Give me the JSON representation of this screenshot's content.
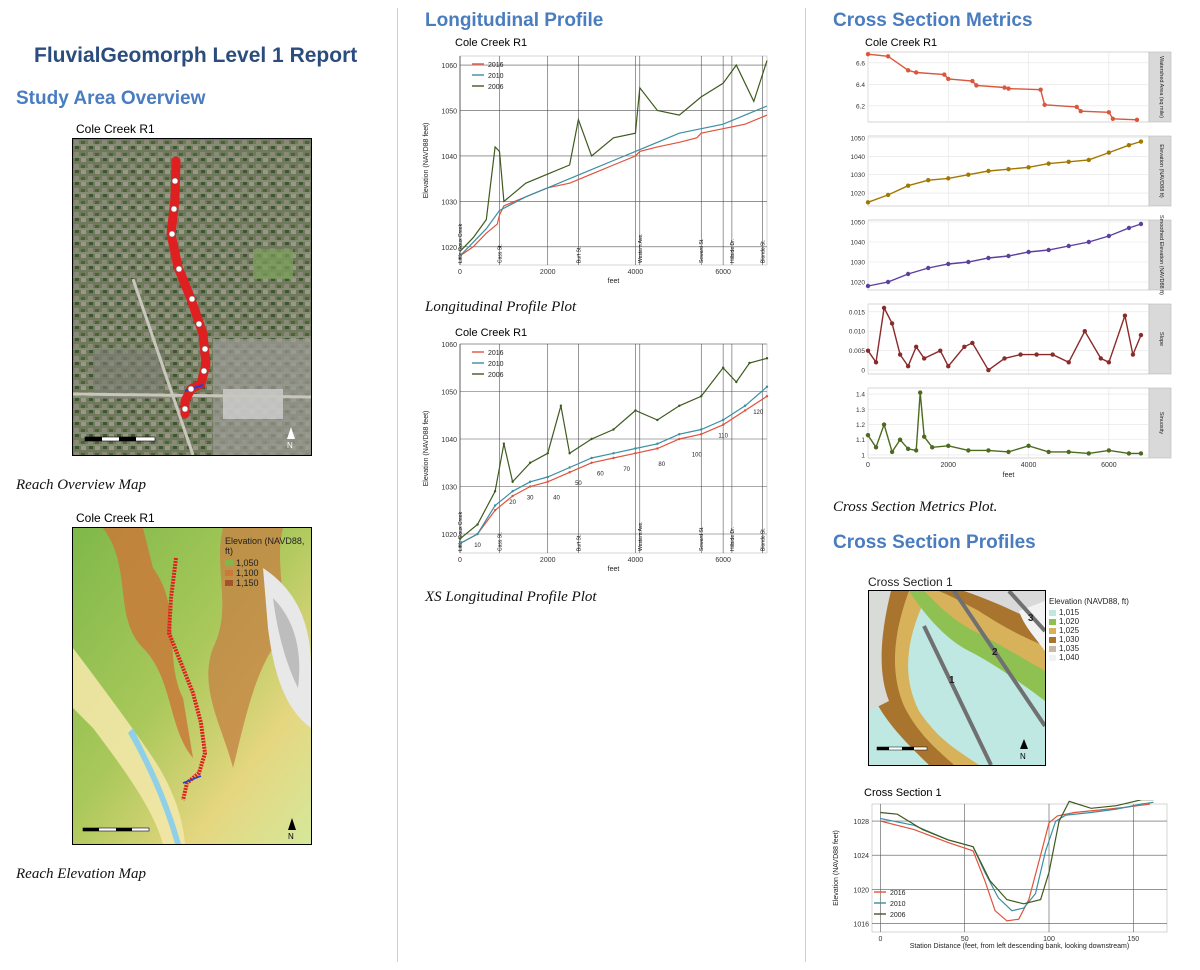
{
  "report": {
    "title": "FluvialGeomorph Level 1 Report"
  },
  "col1": {
    "heading": "Study Area Overview",
    "map1": {
      "title": "Cole Creek R1",
      "caption": "Reach Overview Map"
    },
    "map2": {
      "title": "Cole Creek R1",
      "caption": "Reach Elevation Map",
      "legend_title": "Elevation (NAVD88, ft)",
      "legend_items": [
        "1,050",
        "1,100",
        "1,150"
      ]
    }
  },
  "col2": {
    "heading": "Longitudinal Profile",
    "plot1": {
      "title": "Cole Creek R1",
      "caption": "Longitudinal Profile Plot"
    },
    "plot2": {
      "title": "Cole Creek R1",
      "caption": "XS Longitudinal Profile Plot"
    }
  },
  "col3": {
    "heading": "Cross Section Metrics",
    "metrics": {
      "title": "Cole Creek R1",
      "caption": "Cross Section Metrics Plot.",
      "panels": [
        "Watershed Area (sq mile)",
        "Elevation (NAVD88 ft)",
        "Smoothed Elevation (NAVD88 ft)",
        "Slope",
        "Sinuosity"
      ]
    },
    "heading2": "Cross Section Profiles",
    "xsmap": {
      "title": "Cross Section 1",
      "legend_title": "Elevation (NAVD88, ft)",
      "legend_items": [
        "1,015",
        "1,020",
        "1,025",
        "1,030",
        "1,035",
        "1,040"
      ],
      "xs_labels": [
        "1",
        "2",
        "3"
      ]
    },
    "xsplot": {
      "title": "Cross Section  1"
    }
  },
  "chart_data": [
    {
      "type": "line",
      "id": "longitudinal_profile",
      "title": "Cole Creek R1",
      "xlabel": "feet",
      "ylabel": "Elevation (NAVD88 feet)",
      "xlim": [
        0,
        7000
      ],
      "ylim": [
        1016,
        1062
      ],
      "xticks": [
        0,
        2000,
        4000,
        6000
      ],
      "yticks": [
        1020,
        1030,
        1040,
        1050,
        1060
      ],
      "road_labels": [
        {
          "x": 0,
          "label": "Little Sioux Creek"
        },
        {
          "x": 900,
          "label": "Cass St."
        },
        {
          "x": 2700,
          "label": "Burt St."
        },
        {
          "x": 4100,
          "label": "Western Ave."
        },
        {
          "x": 5500,
          "label": "Seward St."
        },
        {
          "x": 6200,
          "label": "Hillside Dr."
        },
        {
          "x": 6900,
          "label": "Blondo St."
        }
      ],
      "series": [
        {
          "name": "2016",
          "color": "#e0533e",
          "x": [
            0,
            300,
            600,
            850,
            900,
            1000,
            1500,
            2000,
            2500,
            3000,
            3500,
            4000,
            4100,
            4500,
            5000,
            5400,
            5500,
            6000,
            6500,
            7000
          ],
          "y": [
            1018,
            1020,
            1023,
            1025,
            1027,
            1029,
            1031,
            1033,
            1034,
            1036,
            1038,
            1040,
            1041,
            1042,
            1043,
            1044,
            1045,
            1046,
            1047,
            1049
          ]
        },
        {
          "name": "2010",
          "color": "#3a8fa3",
          "x": [
            0,
            300,
            600,
            900,
            1500,
            2000,
            2500,
            3000,
            3500,
            4000,
            4500,
            5000,
            5500,
            6000,
            6500,
            7000
          ],
          "y": [
            1018,
            1021,
            1024,
            1028,
            1031,
            1033,
            1035,
            1037,
            1039,
            1041,
            1043,
            1045,
            1046,
            1047,
            1049,
            1051
          ]
        },
        {
          "name": "2006",
          "color": "#3f5a1e",
          "x": [
            0,
            300,
            600,
            800,
            900,
            1000,
            1500,
            2000,
            2500,
            2700,
            3000,
            3500,
            4000,
            4100,
            4500,
            5000,
            5500,
            6000,
            6300,
            6700,
            7000
          ],
          "y": [
            1019,
            1022,
            1026,
            1042,
            1041,
            1030,
            1034,
            1036,
            1038,
            1048,
            1040,
            1044,
            1045,
            1055,
            1050,
            1049,
            1053,
            1056,
            1060,
            1052,
            1061
          ]
        }
      ]
    },
    {
      "type": "line",
      "id": "xs_longitudinal_profile",
      "title": "Cole Creek R1",
      "xlabel": "feet",
      "ylabel": "Elevation (NAVD88 feet)",
      "xlim": [
        0,
        7000
      ],
      "ylim": [
        1016,
        1060
      ],
      "xticks": [
        0,
        2000,
        4000,
        6000
      ],
      "yticks": [
        1020,
        1030,
        1040,
        1050,
        1060
      ],
      "road_labels": [
        {
          "x": 0,
          "label": "Little Sioux Creek"
        },
        {
          "x": 900,
          "label": "Cass St."
        },
        {
          "x": 2700,
          "label": "Burt St."
        },
        {
          "x": 4100,
          "label": "Western Ave."
        },
        {
          "x": 5500,
          "label": "Seward St."
        },
        {
          "x": 6200,
          "label": "Hillside Dr."
        },
        {
          "x": 6900,
          "label": "Blondo St."
        }
      ],
      "xs_labels": [
        {
          "x": 400,
          "y": 1019,
          "label": "10"
        },
        {
          "x": 1200,
          "y": 1028,
          "label": "20"
        },
        {
          "x": 1600,
          "y": 1029,
          "label": "30"
        },
        {
          "x": 2200,
          "y": 1029,
          "label": "40"
        },
        {
          "x": 2700,
          "y": 1032,
          "label": "50"
        },
        {
          "x": 3200,
          "y": 1034,
          "label": "60"
        },
        {
          "x": 3800,
          "y": 1035,
          "label": "70"
        },
        {
          "x": 4600,
          "y": 1036,
          "label": "80"
        },
        {
          "x": 5400,
          "y": 1038,
          "label": "100"
        },
        {
          "x": 6000,
          "y": 1042,
          "label": "110"
        },
        {
          "x": 6800,
          "y": 1047,
          "label": "120"
        }
      ],
      "series": [
        {
          "name": "2016",
          "color": "#e0533e",
          "x": [
            0,
            400,
            800,
            1200,
            1600,
            2000,
            2500,
            3000,
            3500,
            4000,
            4500,
            5000,
            5500,
            6000,
            6500,
            7000
          ],
          "y": [
            1018,
            1020,
            1025,
            1028,
            1030,
            1031,
            1033,
            1035,
            1036,
            1037,
            1038,
            1040,
            1041,
            1043,
            1046,
            1049
          ]
        },
        {
          "name": "2010",
          "color": "#3a8fa3",
          "x": [
            0,
            400,
            800,
            1200,
            1600,
            2000,
            2500,
            3000,
            3500,
            4000,
            4500,
            5000,
            5500,
            6000,
            6500,
            7000
          ],
          "y": [
            1018,
            1020,
            1026,
            1029,
            1031,
            1032,
            1034,
            1036,
            1037,
            1038,
            1039,
            1041,
            1042,
            1044,
            1047,
            1051
          ]
        },
        {
          "name": "2006",
          "color": "#3f5a1e",
          "x": [
            0,
            400,
            800,
            1000,
            1200,
            1600,
            2000,
            2300,
            2500,
            3000,
            3500,
            4000,
            4500,
            5000,
            5500,
            6000,
            6300,
            6600,
            7000
          ],
          "y": [
            1019,
            1022,
            1029,
            1039,
            1031,
            1035,
            1037,
            1047,
            1037,
            1040,
            1042,
            1046,
            1044,
            1047,
            1049,
            1055,
            1052,
            1056,
            1057
          ]
        }
      ]
    },
    {
      "type": "line",
      "id": "cross_section_metrics",
      "title": "Cole Creek R1",
      "xlabel": "feet",
      "xlim": [
        0,
        7000
      ],
      "xticks": [
        0,
        2000,
        4000,
        6000
      ],
      "panels": [
        {
          "label": "Watershed Area (sq mile)",
          "color": "#d9573c",
          "ylim": [
            6.05,
            6.7
          ],
          "yticks": [
            6.2,
            6.4,
            6.6
          ],
          "x": [
            0,
            500,
            1000,
            1200,
            1900,
            2000,
            2600,
            2700,
            3400,
            3500,
            4300,
            4400,
            5200,
            5300,
            6000,
            6100,
            6700
          ],
          "y": [
            6.68,
            6.66,
            6.53,
            6.51,
            6.49,
            6.45,
            6.43,
            6.39,
            6.37,
            6.36,
            6.35,
            6.21,
            6.19,
            6.15,
            6.14,
            6.08,
            6.07
          ]
        },
        {
          "label": "Elevation (NAVD88 ft)",
          "color": "#a07a00",
          "ylim": [
            1013,
            1051
          ],
          "yticks": [
            1020,
            1030,
            1040,
            1050
          ],
          "x": [
            0,
            500,
            1000,
            1500,
            2000,
            2500,
            3000,
            3500,
            4000,
            4500,
            5000,
            5500,
            6000,
            6500,
            6800
          ],
          "y": [
            1015,
            1019,
            1024,
            1027,
            1028,
            1030,
            1032,
            1033,
            1034,
            1036,
            1037,
            1038,
            1042,
            1046,
            1048
          ]
        },
        {
          "label": "Smoothed Elevation (NAVD88 ft)",
          "color": "#5d3f9c",
          "ylim": [
            1016,
            1051
          ],
          "yticks": [
            1020,
            1030,
            1040,
            1050
          ],
          "x": [
            0,
            500,
            1000,
            1500,
            2000,
            2500,
            3000,
            3500,
            4000,
            4500,
            5000,
            5500,
            6000,
            6500,
            6800
          ],
          "y": [
            1018,
            1020,
            1024,
            1027,
            1029,
            1030,
            1032,
            1033,
            1035,
            1036,
            1038,
            1040,
            1043,
            1047,
            1049
          ]
        },
        {
          "label": "Slope",
          "color": "#8b2a2a",
          "ylim": [
            -0.001,
            0.017
          ],
          "yticks": [
            0.0,
            0.005,
            0.01,
            0.015
          ],
          "x": [
            0,
            200,
            400,
            600,
            800,
            1000,
            1200,
            1400,
            1800,
            2000,
            2400,
            2600,
            3000,
            3400,
            3800,
            4200,
            4600,
            5000,
            5400,
            5800,
            6000,
            6400,
            6600,
            6800
          ],
          "y": [
            0.005,
            0.002,
            0.016,
            0.012,
            0.004,
            0.001,
            0.006,
            0.003,
            0.005,
            0.001,
            0.006,
            0.007,
            0.0,
            0.003,
            0.004,
            0.004,
            0.004,
            0.002,
            0.01,
            0.003,
            0.002,
            0.014,
            0.004,
            0.009
          ]
        },
        {
          "label": "Sinuosity",
          "color": "#4d6b1f",
          "ylim": [
            0.98,
            1.44
          ],
          "yticks": [
            1.0,
            1.1,
            1.2,
            1.3,
            1.4
          ],
          "x": [
            0,
            200,
            400,
            600,
            800,
            1000,
            1200,
            1300,
            1400,
            1600,
            2000,
            2500,
            3000,
            3500,
            4000,
            4500,
            5000,
            5500,
            6000,
            6500,
            6800
          ],
          "y": [
            1.13,
            1.05,
            1.2,
            1.02,
            1.1,
            1.04,
            1.03,
            1.41,
            1.12,
            1.05,
            1.06,
            1.03,
            1.03,
            1.02,
            1.06,
            1.02,
            1.02,
            1.01,
            1.03,
            1.01,
            1.01
          ]
        }
      ]
    },
    {
      "type": "line",
      "id": "cross_section_1",
      "title": "Cross Section  1",
      "xlabel": "Station Distance (feet, from left descending bank, looking downstream)",
      "ylabel": "Elevation (NAVD88 feet)",
      "xlim": [
        -5,
        170
      ],
      "ylim": [
        1015,
        1030
      ],
      "xticks": [
        0,
        50,
        100,
        150
      ],
      "yticks": [
        1016,
        1020,
        1024,
        1028
      ],
      "series": [
        {
          "name": "2016",
          "color": "#e0533e",
          "x": [
            0,
            20,
            40,
            55,
            62,
            68,
            75,
            82,
            88,
            95,
            100,
            105,
            115,
            130,
            145,
            160
          ],
          "y": [
            1028,
            1027,
            1025.5,
            1024.5,
            1021,
            1017.5,
            1016.3,
            1016.5,
            1018.8,
            1024,
            1027.8,
            1028.6,
            1029,
            1029.3,
            1029.6,
            1030
          ]
        },
        {
          "name": "2010",
          "color": "#3a8fa3",
          "x": [
            0,
            20,
            40,
            55,
            62,
            70,
            78,
            85,
            92,
            98,
            104,
            110,
            125,
            140,
            155,
            162
          ],
          "y": [
            1028.3,
            1027.5,
            1025.8,
            1025,
            1022,
            1019,
            1017.5,
            1017.8,
            1019.5,
            1024.5,
            1028,
            1028.7,
            1029,
            1029.4,
            1030,
            1030.2
          ]
        },
        {
          "name": "2006",
          "color": "#3f5a1e",
          "x": [
            0,
            10,
            25,
            40,
            55,
            65,
            75,
            85,
            95,
            100,
            106,
            112,
            125,
            140,
            155,
            162
          ],
          "y": [
            1029,
            1028.8,
            1027,
            1025.8,
            1025,
            1021,
            1018.8,
            1018.3,
            1018.8,
            1022,
            1028,
            1030.3,
            1029.5,
            1029.8,
            1030.5,
            1030.5
          ]
        }
      ]
    }
  ]
}
